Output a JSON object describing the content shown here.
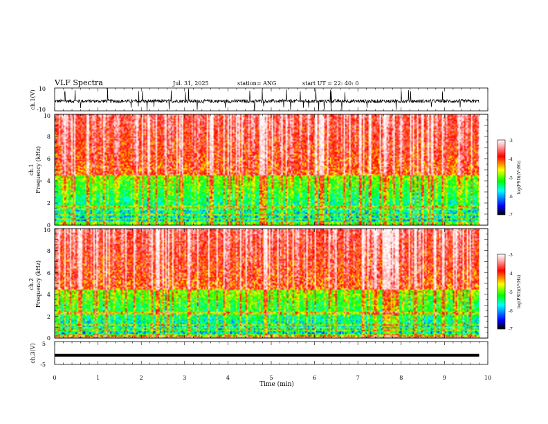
{
  "header": {
    "title": "VLF Spectra",
    "date": "Jul. 31, 2025",
    "station": "station= ANG",
    "start": "start  UT =  22: 40: 0"
  },
  "panels": {
    "ch1_wave": {
      "ylabel": "ch.1(V)",
      "yticks": [
        "10",
        "-10"
      ],
      "ylim": [
        -10,
        10
      ]
    },
    "ch1_spec": {
      "ylabel_top": "ch.1",
      "ylabel": "Frequency (kHz)",
      "yticks": [
        "0",
        "2",
        "4",
        "6",
        "8",
        "10"
      ],
      "colorbar_label": "log(PSD)(V²/Hz)",
      "colorbar_ticks": [
        "-3",
        "-4",
        "-5",
        "-6",
        "-7"
      ]
    },
    "ch2_spec": {
      "ylabel_top": "ch.2",
      "ylabel": "Frequency (kHz)",
      "yticks": [
        "0",
        "2",
        "4",
        "6",
        "8",
        "10"
      ],
      "colorbar_label": "log(PSD)(V²/Hz)",
      "colorbar_ticks": [
        "-3",
        "-4",
        "-5",
        "-6",
        "-7"
      ]
    },
    "ch3_wave": {
      "ylabel": "ch.3(V)",
      "yticks": [
        "5",
        "-5"
      ],
      "ylim": [
        -5,
        5
      ]
    }
  },
  "xaxis": {
    "label": "Time (min)",
    "ticks": [
      "0",
      "1",
      "2",
      "3",
      "4",
      "5",
      "6",
      "7",
      "8",
      "9",
      "10"
    ],
    "xlim": [
      0,
      10
    ]
  },
  "chart_data": {
    "type": "heatmap",
    "title": "VLF Spectra",
    "xlabel": "Time (min)",
    "xlim": [
      0,
      10
    ],
    "data_end_min": 9.8,
    "series": [
      {
        "name": "ch.1",
        "kind": "waveform",
        "ylim": [
          -10,
          10
        ],
        "baseline_v": -1.5
      },
      {
        "name": "ch.1",
        "kind": "spectrogram",
        "ylim_khz": [
          0,
          10
        ],
        "zlim_log_psd": [
          -7,
          -3
        ]
      },
      {
        "name": "ch.2",
        "kind": "spectrogram",
        "ylim_khz": [
          0,
          10
        ],
        "zlim_log_psd": [
          -7,
          -3
        ]
      },
      {
        "name": "ch.3",
        "kind": "waveform",
        "ylim": [
          -5,
          5
        ],
        "constant_v": -1.0
      }
    ],
    "colormap": [
      "#000000",
      "#0000ff",
      "#00ffff",
      "#00ff00",
      "#ffff00",
      "#ff0000",
      "#ffb0b0",
      "#ffffff"
    ]
  }
}
